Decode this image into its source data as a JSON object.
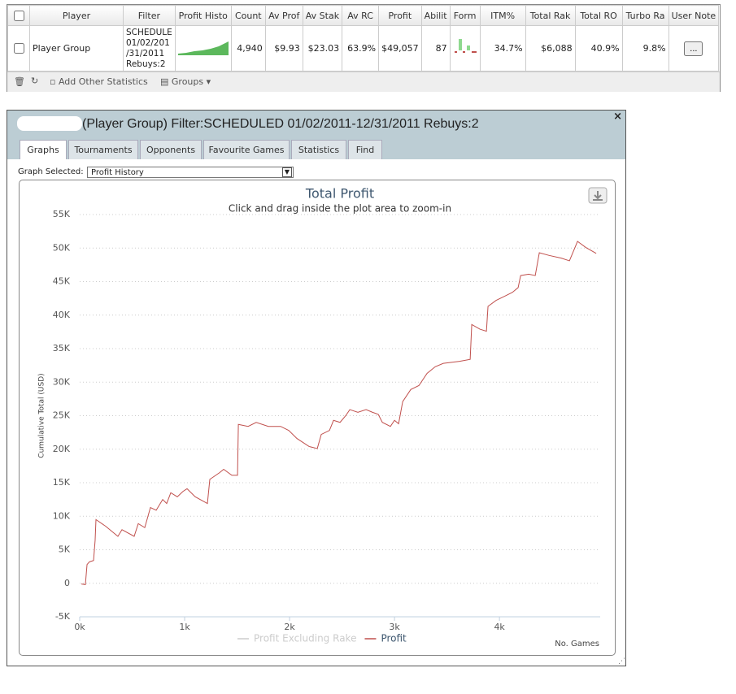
{
  "table": {
    "headers": [
      "Player",
      "Filter",
      "Profit Histo",
      "Count",
      "Av Prof",
      "Av Stak",
      "Av RC",
      "Profit",
      "Abilit",
      "Form",
      "ITM%",
      "Total Rak",
      "Total RO",
      "Turbo Ra",
      "User Note"
    ],
    "row": {
      "player": "Player Group",
      "filter": [
        "SCHEDULE",
        "01/02/201",
        "/31/2011",
        "Rebuys:2"
      ],
      "cells": [
        "4,940",
        "$9.93",
        "$23.03",
        "63.9%",
        "$49,057",
        "87",
        "34.7%",
        "$6,088",
        "40.9%",
        "9.8%",
        "..."
      ]
    },
    "toolbar": [
      "Add Other Statistics",
      "Groups"
    ]
  },
  "panel": {
    "title": "(Player Group) Filter:SCHEDULED 01/02/2011-12/31/2011 Rebuys:2",
    "tabs": [
      "Graphs",
      "Tournaments",
      "Opponents",
      "Favourite Games",
      "Statistics",
      "Find"
    ],
    "graph_label": "Graph Selected:",
    "graph_selected": "Profit History"
  },
  "chart_data": {
    "type": "line",
    "title": "Total Profit",
    "subtitle": "Click and drag inside the plot area to zoom-in",
    "y_label": "Cumulative Total (USD)",
    "x_label": "No. Games",
    "xlim": [
      0,
      4960
    ],
    "ylim": [
      -5000,
      55000
    ],
    "xticks": [
      {
        "value": 0,
        "label": "0k"
      },
      {
        "value": 1000,
        "label": "1k"
      },
      {
        "value": 2000,
        "label": "2k"
      },
      {
        "value": 3000,
        "label": "3k"
      },
      {
        "value": 4000,
        "label": "4k"
      }
    ],
    "yticks": [
      {
        "value": -5000,
        "label": "-5K"
      },
      0,
      {
        "value": 5000,
        "label": "5K"
      },
      {
        "value": 10000,
        "label": "10K"
      },
      {
        "value": 15000,
        "label": "15K"
      },
      {
        "value": 20000,
        "label": "20K"
      },
      {
        "value": 25000,
        "label": "25K"
      },
      {
        "value": 30000,
        "label": "30K"
      },
      {
        "value": 35000,
        "label": "35K"
      },
      {
        "value": 40000,
        "label": "40K"
      },
      {
        "value": 45000,
        "label": "45K"
      },
      {
        "value": 50000,
        "label": "50K"
      },
      {
        "value": 55000,
        "label": "55K"
      }
    ],
    "grid": true,
    "legend": "bottom",
    "x": [
      15,
      54,
      70,
      93,
      132,
      147,
      155,
      248,
      364,
      403,
      519,
      558,
      620,
      674,
      729,
      791,
      829,
      868,
      930,
      984,
      1023,
      1101,
      1217,
      1240,
      1333,
      1372,
      1450,
      1504,
      1512,
      1605,
      1682,
      1798,
      1915,
      1992,
      2070,
      2186,
      2264,
      2302,
      2380,
      2419,
      2481,
      2535,
      2574,
      2651,
      2729,
      2791,
      2845,
      2884,
      2961,
      3000,
      3039,
      3078,
      3155,
      3233,
      3310,
      3388,
      3465,
      3620,
      3721,
      3736,
      3814,
      3876,
      3891,
      3969,
      4047,
      4124,
      4178,
      4202,
      4279,
      4341,
      4380,
      4473,
      4589,
      4667,
      4744,
      4822,
      4922
    ],
    "series": [
      {
        "name": "Profit Excluding Rake",
        "color": "#cccccc",
        "visible": false
      },
      {
        "name": "Profit",
        "color": "#c0504d",
        "visible": true,
        "values": [
          -100,
          -200,
          2800,
          3200,
          3400,
          6400,
          9500,
          8500,
          7000,
          8000,
          7000,
          8900,
          8300,
          11300,
          10900,
          12500,
          11900,
          13500,
          12900,
          13700,
          14100,
          12900,
          11900,
          15500,
          16500,
          17000,
          16100,
          16100,
          23700,
          23400,
          24000,
          23400,
          23400,
          22800,
          21600,
          20400,
          20100,
          22200,
          22800,
          24300,
          24000,
          25000,
          25900,
          25500,
          25900,
          25500,
          25200,
          24000,
          23400,
          24300,
          23800,
          27100,
          28900,
          29500,
          31300,
          32300,
          32800,
          33100,
          33400,
          38600,
          37900,
          37600,
          41300,
          42200,
          42800,
          43400,
          44100,
          45900,
          46100,
          45900,
          49300,
          48900,
          48500,
          48100,
          51000,
          50100,
          49200
        ]
      }
    ]
  }
}
